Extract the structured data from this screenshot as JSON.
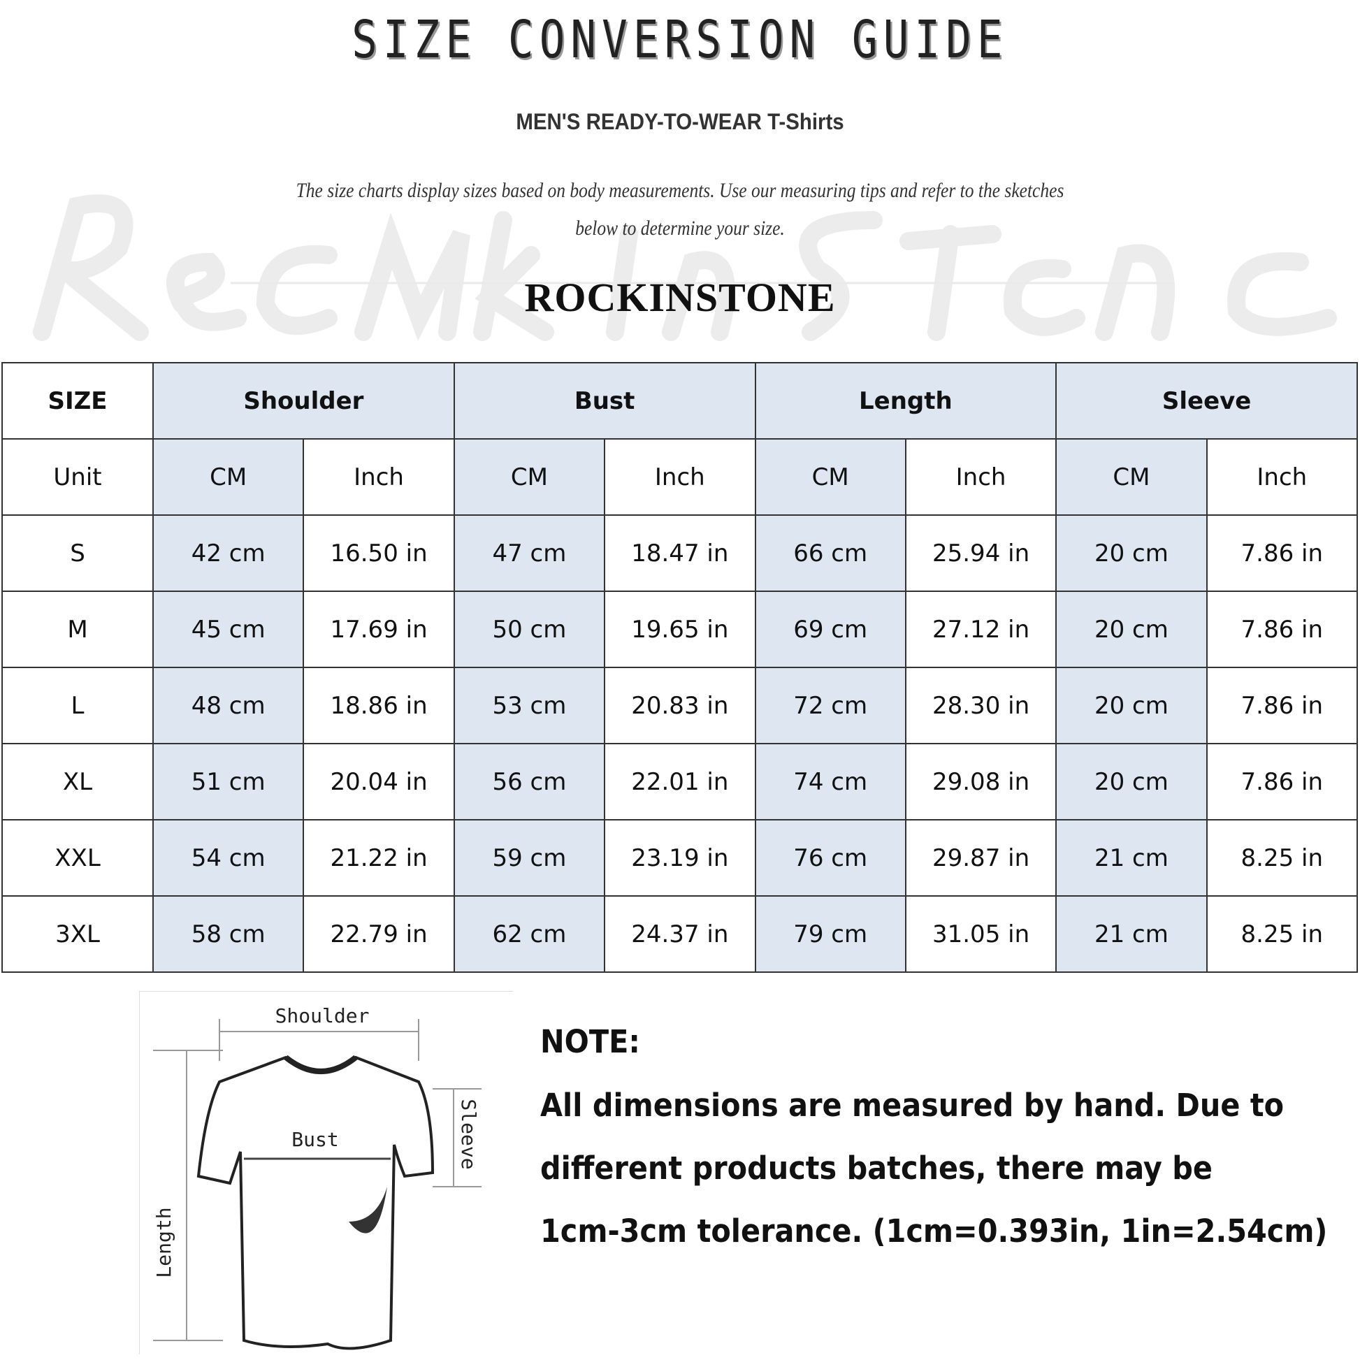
{
  "title": "SIZE CONVERSION GUIDE",
  "subtitle": "MEN'S READY-TO-WEAR T-Shirts",
  "description": [
    "The size charts display sizes based on body measurements. Use our measuring tips and refer to the sketches",
    "below to determine your size."
  ],
  "brand": "ROCKINSTONE",
  "watermark": "Rock In Stone",
  "colors": {
    "header_fill": "#dde6f1",
    "border": "#333333"
  },
  "table": {
    "size_label": "SIZE",
    "groups": [
      "Shoulder",
      "Bust",
      "Length",
      "Sleeve"
    ],
    "unit_label": "Unit",
    "units": [
      "CM",
      "Inch",
      "CM",
      "Inch",
      "CM",
      "Inch",
      "CM",
      "Inch"
    ],
    "rows": [
      {
        "size": "S",
        "values": [
          "42 cm",
          "16.50 in",
          "47 cm",
          "18.47  in",
          "66 cm",
          "25.94  in",
          "20 cm",
          "7.86  in"
        ]
      },
      {
        "size": "M",
        "values": [
          "45 cm",
          "17.69  in",
          "50 cm",
          "19.65  in",
          "69 cm",
          "27.12  in",
          "20 cm",
          "7.86  in"
        ]
      },
      {
        "size": "L",
        "values": [
          "48 cm",
          "18.86  in",
          "53 cm",
          "20.83  in",
          "72 cm",
          "28.30  in",
          "20 cm",
          "7.86  in"
        ]
      },
      {
        "size": "XL",
        "values": [
          "51 cm",
          "20.04  in",
          "56 cm",
          "22.01  in",
          "74 cm",
          "29.08  in",
          "20 cm",
          "7.86  in"
        ]
      },
      {
        "size": "XXL",
        "values": [
          "54 cm",
          "21.22  in",
          "59 cm",
          "23.19  in",
          "76 cm",
          "29.87  in",
          "21 cm",
          "8.25  in"
        ]
      },
      {
        "size": "3XL",
        "values": [
          "58 cm",
          "22.79  in",
          "62 cm",
          "24.37  in",
          "79 cm",
          "31.05  in",
          "21 cm",
          "8.25  in"
        ]
      }
    ]
  },
  "diagram": {
    "shoulder": "Shoulder",
    "bust": "Bust",
    "length": "Length",
    "sleeve": "Sleeve"
  },
  "note": {
    "heading": "NOTE:",
    "lines": [
      "All dimensions are measured by hand. Due to",
      "different products batches, there may be",
      "1cm-3cm tolerance. (1cm=0.393in, 1in=2.54cm)"
    ]
  }
}
